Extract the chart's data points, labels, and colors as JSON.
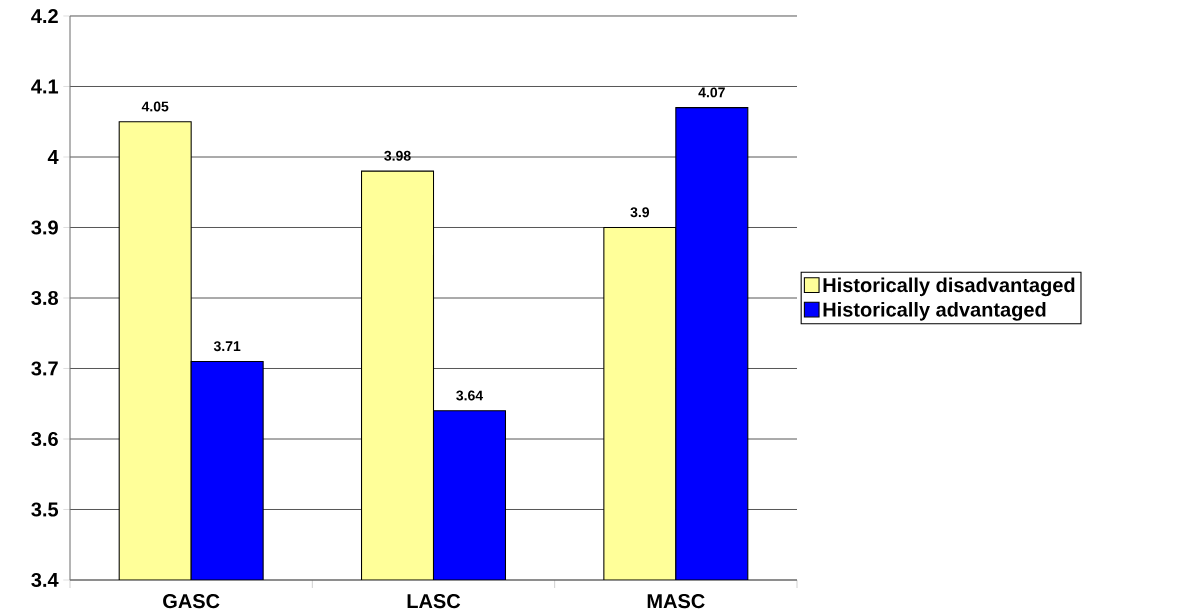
{
  "chart_data": {
    "type": "bar",
    "categories": [
      "GASC",
      "LASC",
      "MASC"
    ],
    "series": [
      {
        "name": "Historically disadvantaged",
        "color": "#ffff99",
        "values": [
          4.05,
          3.98,
          3.9
        ]
      },
      {
        "name": "Historically advantaged",
        "color": "#0000ff",
        "values": [
          3.71,
          3.64,
          4.07
        ]
      }
    ],
    "ylim": [
      3.4,
      4.2
    ],
    "yticks": [
      3.4,
      3.5,
      3.6,
      3.7,
      3.8,
      3.9,
      4,
      4.1,
      4.2
    ],
    "grid": "y",
    "legend": "right",
    "data_labels": true
  }
}
